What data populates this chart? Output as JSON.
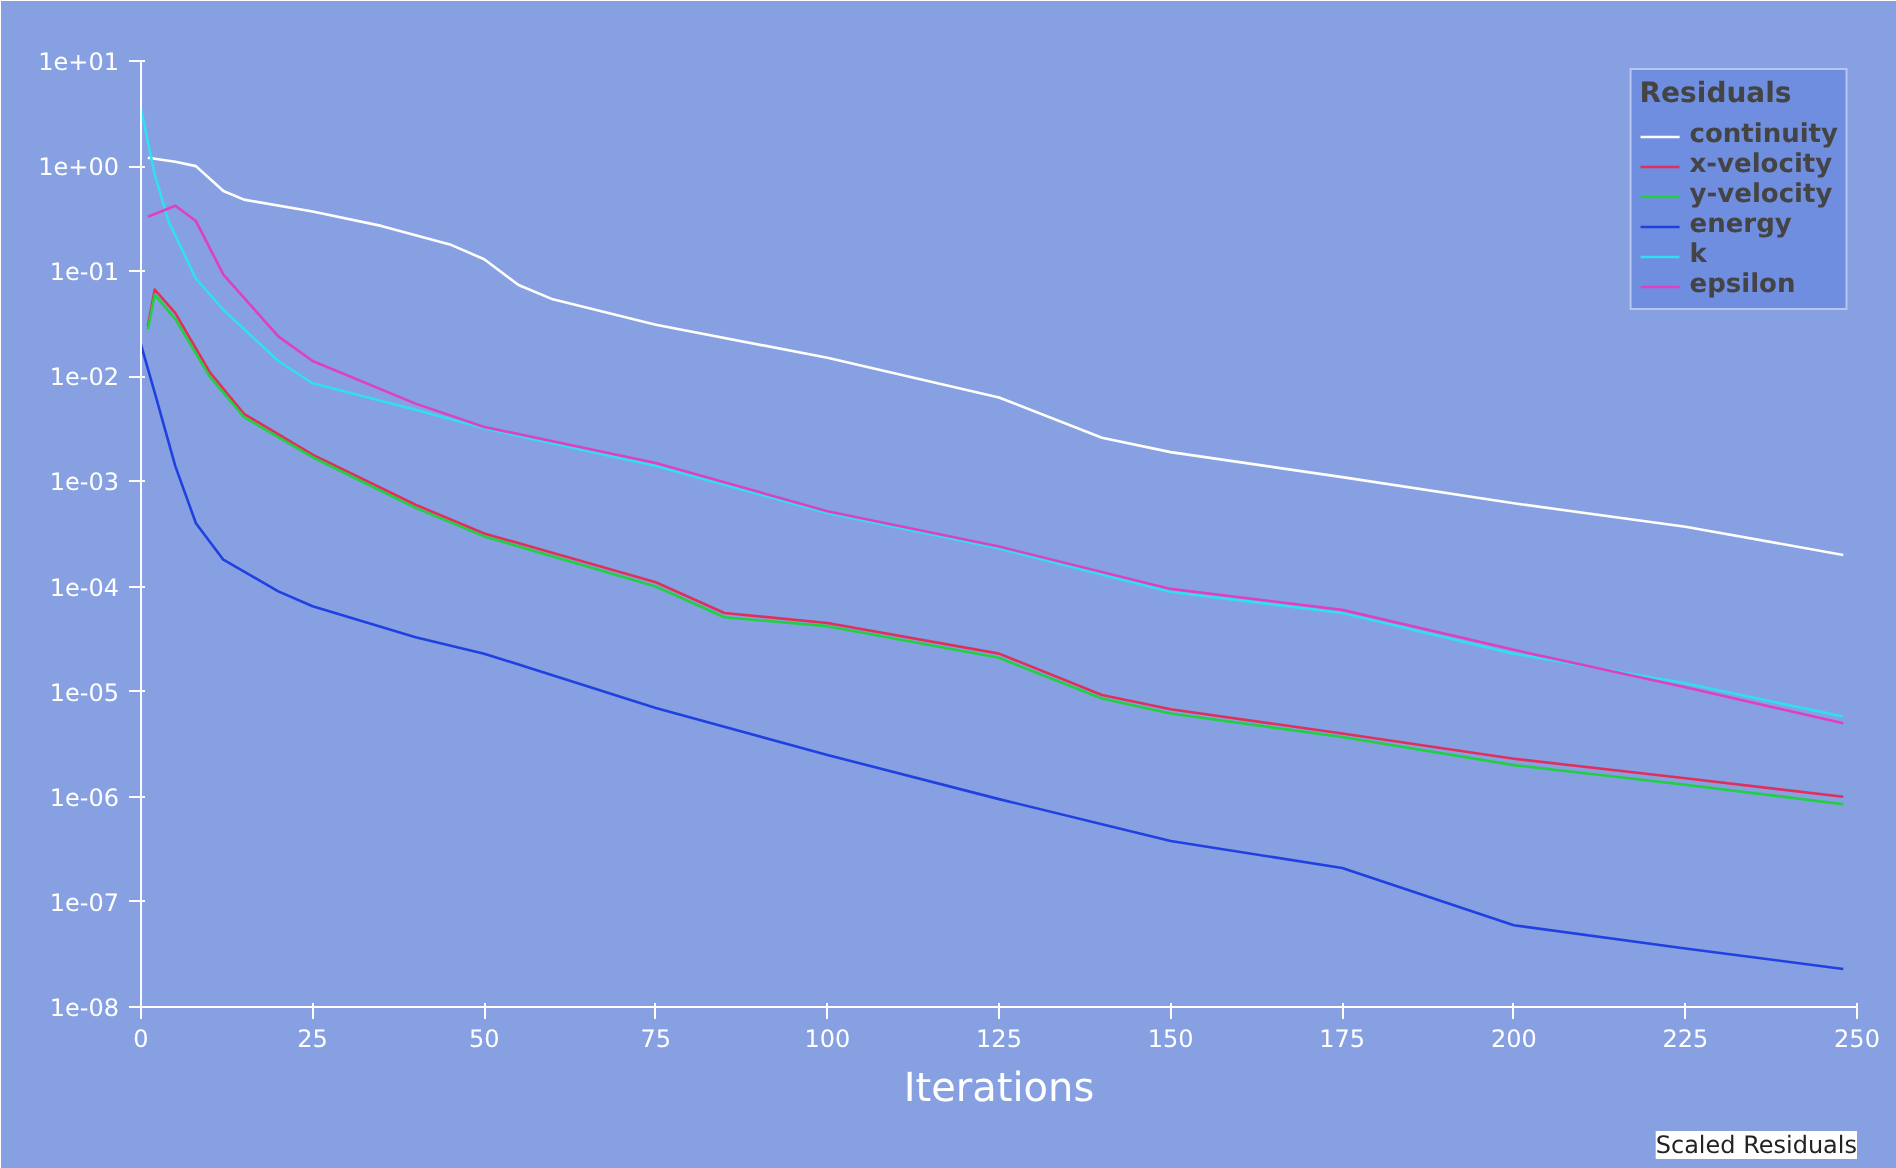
{
  "chart_data": {
    "type": "line",
    "xlabel": "Iterations",
    "legend_title": "Residuals",
    "legend": "top right",
    "log": "y",
    "grid": false,
    "annotations": [
      "Scaled Residuals"
    ],
    "xlim": [
      0,
      250
    ],
    "xticks": [
      0,
      25,
      50,
      75,
      100,
      125,
      150,
      175,
      200,
      225,
      250
    ],
    "ylim": [
      1e-08,
      10
    ],
    "yticks": [
      {
        "value": 1e-08,
        "label": "1e-08"
      },
      {
        "value": 1e-07,
        "label": "1e-07"
      },
      {
        "value": 1e-06,
        "label": "1e-06"
      },
      {
        "value": 1e-05,
        "label": "1e-05"
      },
      {
        "value": 0.0001,
        "label": "1e-04"
      },
      {
        "value": 0.001,
        "label": "1e-03"
      },
      {
        "value": 0.01,
        "label": "1e-02"
      },
      {
        "value": 0.1,
        "label": "1e-01"
      },
      {
        "value": 1,
        "label": "1e+00"
      },
      {
        "value": 10,
        "label": "1e+01"
      }
    ],
    "series": [
      {
        "name": "continuity",
        "color": "#ffffff",
        "x": [
          1,
          5,
          8,
          12,
          15,
          25,
          35,
          45,
          50,
          55,
          60,
          75,
          100,
          125,
          140,
          150,
          175,
          200,
          225,
          248
        ],
        "values": [
          1.2,
          1.1,
          1.0,
          0.58,
          0.48,
          0.37,
          0.27,
          0.18,
          0.13,
          0.074,
          0.054,
          0.031,
          0.015,
          0.0063,
          0.0026,
          0.0019,
          0.0011,
          0.00062,
          0.00037,
          0.0002
        ]
      },
      {
        "name": "x-velocity",
        "color": "#e0305a",
        "x": [
          1,
          2,
          5,
          10,
          15,
          25,
          40,
          50,
          75,
          85,
          100,
          125,
          140,
          150,
          175,
          200,
          225,
          248
        ],
        "values": [
          0.03,
          0.067,
          0.04,
          0.011,
          0.0044,
          0.0018,
          0.0006,
          0.00032,
          0.00011,
          5.6e-05,
          4.5e-05,
          2.3e-05,
          9.3e-06,
          6.8e-06,
          4e-06,
          2.3e-06,
          1.5e-06,
          1e-06
        ]
      },
      {
        "name": "y-velocity",
        "color": "#20d040",
        "x": [
          1,
          2,
          5,
          10,
          15,
          25,
          40,
          50,
          75,
          85,
          100,
          125,
          140,
          150,
          175,
          200,
          225,
          248
        ],
        "values": [
          0.028,
          0.06,
          0.035,
          0.01,
          0.0041,
          0.0017,
          0.00056,
          0.0003,
          0.0001,
          5.1e-05,
          4.2e-05,
          2.1e-05,
          8.6e-06,
          6.2e-06,
          3.7e-06,
          2e-06,
          1.3e-06,
          8.5e-07
        ]
      },
      {
        "name": "energy",
        "color": "#2040e0",
        "x": [
          0,
          2,
          5,
          8,
          12,
          20,
          25,
          40,
          50,
          75,
          100,
          125,
          150,
          175,
          200,
          225,
          248
        ],
        "values": [
          0.02,
          0.007,
          0.0014,
          0.0004,
          0.00018,
          9e-05,
          6.5e-05,
          3.3e-05,
          2.3e-05,
          7e-06,
          2.5e-06,
          9.5e-07,
          3.8e-07,
          2.1e-07,
          6e-08,
          3.6e-08,
          2.3e-08
        ]
      },
      {
        "name": "k",
        "color": "#30e0f0",
        "x": [
          0,
          2,
          4,
          8,
          12,
          20,
          25,
          40,
          50,
          75,
          100,
          125,
          150,
          175,
          200,
          225,
          248
        ],
        "values": [
          3.5,
          0.83,
          0.3,
          0.085,
          0.043,
          0.014,
          0.0086,
          0.0048,
          0.0032,
          0.0014,
          0.0005,
          0.00023,
          8.9e-05,
          5.6e-05,
          2.3e-05,
          1.2e-05,
          5.8e-06
        ]
      },
      {
        "name": "epsilon",
        "color": "#e040c0",
        "x": [
          1,
          5,
          8,
          12,
          20,
          25,
          40,
          50,
          75,
          100,
          125,
          150,
          175,
          200,
          225,
          248
        ],
        "values": [
          0.33,
          0.42,
          0.3,
          0.093,
          0.024,
          0.014,
          0.0055,
          0.0033,
          0.0015,
          0.00052,
          0.00024,
          9.5e-05,
          6e-05,
          2.5e-05,
          1.1e-05,
          5e-06
        ]
      }
    ]
  }
}
